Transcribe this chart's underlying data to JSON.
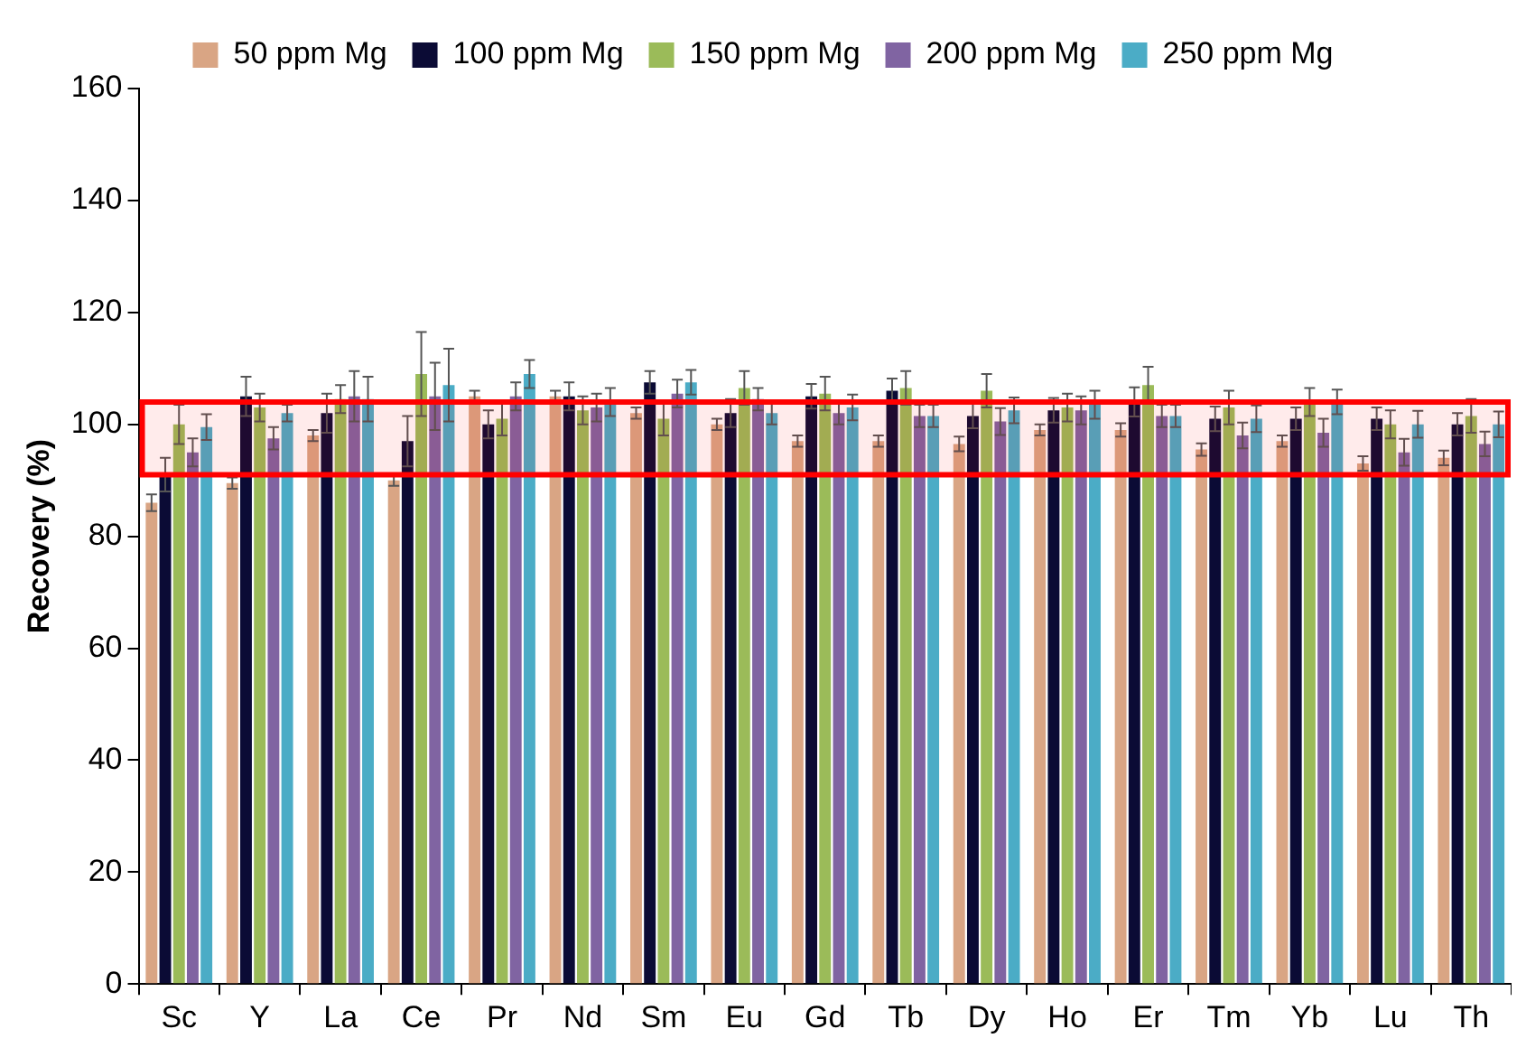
{
  "chart_data": {
    "type": "bar",
    "ylabel": "Recovery (%)",
    "categories": [
      "Sc",
      "Y",
      "La",
      "Ce",
      "Pr",
      "Nd",
      "Sm",
      "Eu",
      "Gd",
      "Tb",
      "Dy",
      "Ho",
      "Er",
      "Tm",
      "Yb",
      "Lu",
      "Th"
    ],
    "series": [
      {
        "name": "50 ppm Mg",
        "color": "#d9a584",
        "values": [
          86,
          89.5,
          98,
          90,
          105,
          105,
          102,
          100,
          97,
          97,
          96.5,
          99,
          99,
          95.5,
          97,
          93,
          94
        ],
        "errors": [
          1.5,
          1,
          1,
          1,
          1,
          1,
          1,
          1,
          1,
          1,
          1.3,
          1,
          1.2,
          1.1,
          1,
          1.3,
          1.3
        ]
      },
      {
        "name": "100 ppm Mg",
        "color": "#0b0b35",
        "values": [
          91,
          105,
          102,
          97,
          100,
          105,
          107.5,
          102,
          105,
          106,
          101.5,
          102.5,
          104,
          101,
          101,
          101,
          100
        ],
        "errors": [
          3,
          3.5,
          3.5,
          4.5,
          2.5,
          2.5,
          2,
          2.5,
          2.2,
          2.2,
          2.2,
          2.2,
          2.6,
          2.2,
          2,
          2,
          2
        ]
      },
      {
        "name": "150 ppm Mg",
        "color": "#9bbb59",
        "values": [
          100,
          103,
          104.5,
          109,
          101,
          102.5,
          101,
          106.5,
          105.5,
          106.5,
          106,
          103,
          107,
          103,
          104,
          100,
          101.5
        ],
        "errors": [
          3.5,
          2.5,
          2.5,
          7.5,
          3,
          2.5,
          3,
          3,
          3,
          3,
          3,
          2.5,
          3.3,
          3,
          2.5,
          2.5,
          3
        ]
      },
      {
        "name": "200 ppm Mg",
        "color": "#8064a2",
        "values": [
          95,
          97.5,
          105,
          105,
          105,
          103,
          105.5,
          104.5,
          102,
          101.5,
          100.5,
          102.5,
          101.5,
          98,
          98.5,
          95,
          96.5
        ],
        "errors": [
          2.5,
          2,
          4.5,
          6,
          2.5,
          2.5,
          2.5,
          2,
          2,
          2,
          2.4,
          2.5,
          2,
          2.3,
          2.5,
          2.4,
          2.2
        ]
      },
      {
        "name": "250 ppm Mg",
        "color": "#4bacc6",
        "values": [
          99.5,
          102,
          104.5,
          107,
          109,
          104,
          107.5,
          102,
          103,
          101.5,
          102.5,
          103.5,
          101.5,
          101,
          104,
          100,
          100
        ],
        "errors": [
          2.3,
          1.5,
          4,
          6.5,
          2.5,
          2.5,
          2.2,
          2,
          2.3,
          2,
          2.3,
          2.5,
          2,
          2.4,
          2.2,
          2.4,
          2.3
        ]
      }
    ],
    "ylim": [
      0,
      160
    ],
    "yticks": [
      0,
      20,
      40,
      60,
      80,
      100,
      120,
      140,
      160
    ],
    "grid": false,
    "legend": "top",
    "bands": [
      {
        "axis": "y",
        "from": 91,
        "to": 104,
        "color": "#ff0000"
      }
    ]
  }
}
